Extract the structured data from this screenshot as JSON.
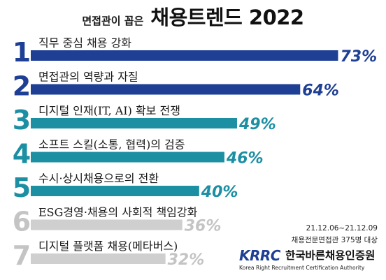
{
  "header": {
    "subtitle": "면접관이 꼽은",
    "title": "채용트렌드 2022"
  },
  "colors": {
    "navy": "#1e3f94",
    "teal": "#1c8fa3",
    "gray": "#cfcfcf",
    "gray_text": "#c4c4c4"
  },
  "chart_data": {
    "type": "bar",
    "orientation": "horizontal",
    "xlim": [
      0,
      100
    ],
    "grid": false,
    "categories": [
      "직무 중심 채용 강화",
      "면접관의 역량과 자질",
      "디지털 인재(IT, AI) 확보 전쟁",
      "소프트 스킬(소통, 협력)의 검증",
      "수시·상시채용으로의 전환",
      "ESG경영·채용의 사회적 책임강화",
      "디지털 플랫폼 채용(메타버스)"
    ],
    "ranks": [
      "1",
      "2",
      "3",
      "4",
      "5",
      "6",
      "7"
    ],
    "values": [
      73,
      64,
      49,
      46,
      40,
      36,
      32
    ],
    "value_labels": [
      "73%",
      "64%",
      "49%",
      "46%",
      "40%",
      "36%",
      "32%"
    ],
    "bar_colors": [
      "navy",
      "navy",
      "teal",
      "teal",
      "teal",
      "gray",
      "gray"
    ]
  },
  "notes": {
    "period": "21.12.06~21.12.09",
    "sample": "채용전문면접관 375명 대상"
  },
  "logo": {
    "mark": "KRRC",
    "name": "한국바른채용인증원",
    "english": "Korea Right Recruitment Certification Authority"
  }
}
